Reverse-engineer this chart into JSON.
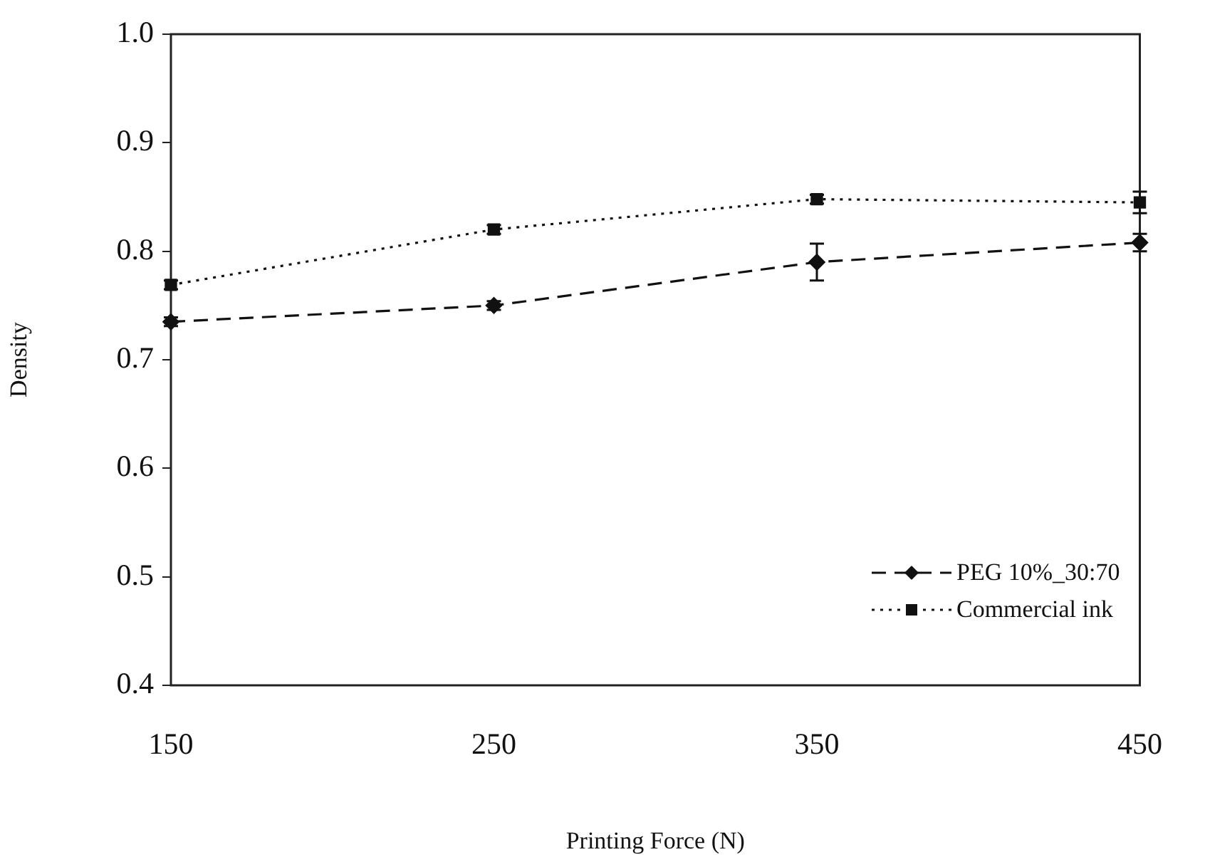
{
  "chart_data": {
    "type": "line",
    "xlabel": "Printing Force (N)",
    "ylabel": "Density",
    "categories": [
      "150",
      "250",
      "350",
      "450"
    ],
    "ylim": [
      0.4,
      1.0
    ],
    "yticks": [
      {
        "value": 0.4,
        "label": "0.4"
      },
      {
        "value": 0.5,
        "label": "0.5"
      },
      {
        "value": 0.6,
        "label": "0.6"
      },
      {
        "value": 0.7,
        "label": "0.7"
      },
      {
        "value": 0.8,
        "label": "0.8"
      },
      {
        "value": 0.9,
        "label": "0.9"
      },
      {
        "value": 1.0,
        "label": "1.0"
      }
    ],
    "grid": false,
    "legend": "bottom right",
    "series": [
      {
        "name": "PEG 10%_30:70",
        "color": "#111111",
        "values": [
          0.735,
          0.75,
          0.79,
          0.808
        ],
        "errors": [
          0.004,
          0.004,
          0.017,
          0.008
        ],
        "marker": "diamond",
        "line_style": "dashed"
      },
      {
        "name": "Commercial ink",
        "color": "#111111",
        "values": [
          0.769,
          0.82,
          0.848,
          0.845
        ],
        "errors": [
          0.004,
          0.004,
          0.004,
          0.01
        ],
        "marker": "square",
        "line_style": "dotted"
      }
    ]
  }
}
